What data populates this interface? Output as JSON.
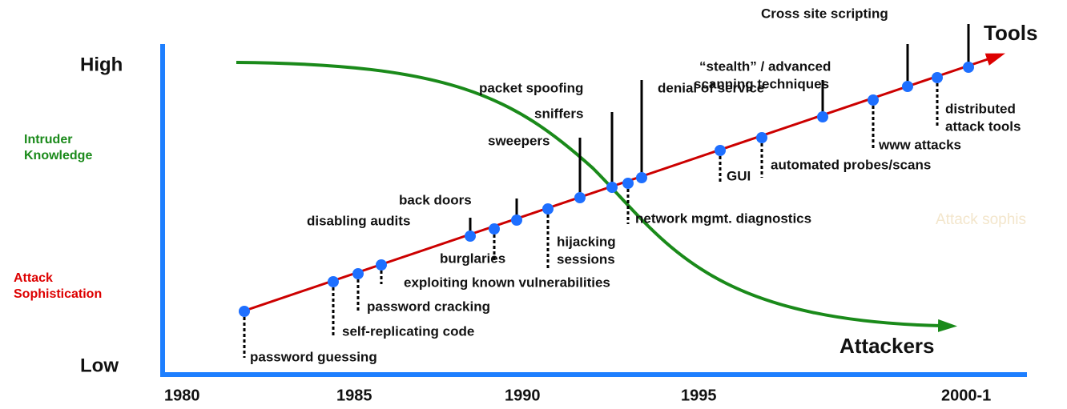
{
  "y_axis": {
    "high": "High",
    "low": "Low",
    "labels": [
      [
        "Intruder",
        "Knowledge"
      ],
      [
        "Attack",
        "Sophistication"
      ]
    ]
  },
  "x_axis": {
    "labels": [
      "1980",
      "1985",
      "1990",
      "1995",
      "2000-1"
    ]
  },
  "lines": {
    "tools": "Tools",
    "attackers": "Attackers",
    "faint": "Attack sophis"
  },
  "events": [
    {
      "label": [
        "password guessing"
      ]
    },
    {
      "label": [
        "self-replicating code"
      ]
    },
    {
      "label": [
        "password cracking"
      ]
    },
    {
      "label": [
        "exploiting known vulnerabilities"
      ]
    },
    {
      "label": [
        "disabling audits"
      ]
    },
    {
      "label": [
        "burglaries"
      ]
    },
    {
      "label": [
        "back doors"
      ]
    },
    {
      "label": [
        "hijacking",
        "sessions"
      ]
    },
    {
      "label": [
        "sweepers"
      ]
    },
    {
      "label": [
        "sniffers"
      ]
    },
    {
      "label": [
        "network mgmt. diagnostics"
      ]
    },
    {
      "label": [
        "packet spoofing"
      ]
    },
    {
      "label": [
        "GUI"
      ]
    },
    {
      "label": [
        "automated probes/scans"
      ]
    },
    {
      "label": [
        "denial of service"
      ]
    },
    {
      "label": [
        "www attacks"
      ]
    },
    {
      "label": [
        "“stealth” / advanced",
        "scanning techniques"
      ]
    },
    {
      "label": [
        "distributed",
        "attack tools"
      ]
    },
    {
      "label": [
        "Cross site scripting"
      ]
    }
  ]
}
